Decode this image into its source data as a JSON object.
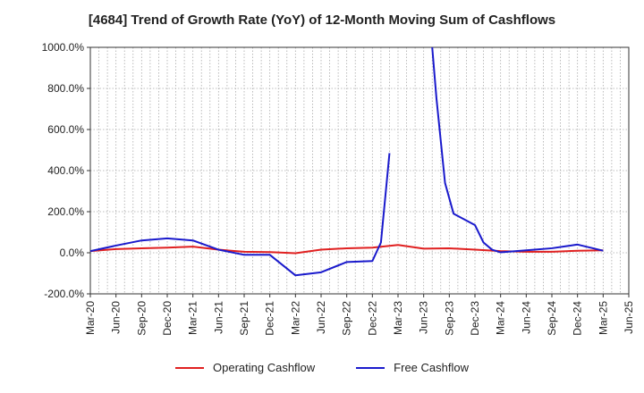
{
  "colors": {
    "operating": "#e02020",
    "free": "#1a1acc",
    "grid": "#aaaaaa",
    "axis": "#333333"
  },
  "chart_data": {
    "type": "line",
    "title": "[4684]  Trend of Growth Rate (YoY) of 12-Month Moving Sum of Cashflows",
    "xlabel": "",
    "ylabel": "",
    "ylim": [
      -200,
      1000
    ],
    "y_ticks": [
      -200,
      0,
      200,
      400,
      600,
      800,
      1000
    ],
    "y_tick_labels": [
      "-200.0%",
      "0.0%",
      "200.0%",
      "400.0%",
      "600.0%",
      "800.0%",
      "1000.0%"
    ],
    "x_tick_labels": [
      "Mar-20",
      "Jun-20",
      "Sep-20",
      "Dec-20",
      "Mar-21",
      "Jun-21",
      "Sep-21",
      "Dec-21",
      "Mar-22",
      "Jun-22",
      "Sep-22",
      "Dec-22",
      "Mar-23",
      "Jun-23",
      "Sep-23",
      "Dec-23",
      "Mar-24",
      "Jun-24",
      "Sep-24",
      "Dec-24",
      "Mar-25",
      "Jun-25"
    ],
    "x_range_months": [
      0,
      63
    ],
    "grid": true,
    "legend_position": "bottom",
    "series": [
      {
        "name": "Operating Cashflow",
        "color_key": "operating",
        "x": [
          0,
          3,
          6,
          9,
          12,
          15,
          18,
          21,
          24,
          27,
          30,
          33,
          36,
          39,
          42,
          45,
          48,
          51,
          54,
          57,
          60
        ],
        "y": [
          8,
          18,
          22,
          25,
          30,
          15,
          5,
          3,
          -2,
          15,
          22,
          25,
          38,
          20,
          22,
          15,
          8,
          5,
          5,
          10,
          12
        ]
      },
      {
        "name": "Free Cashflow",
        "color_key": "free",
        "segments": [
          {
            "x": [
              0,
              3,
              6,
              9,
              12,
              15,
              18,
              21,
              24,
              27,
              30,
              33,
              34,
              35
            ],
            "y": [
              8,
              35,
              60,
              70,
              60,
              15,
              -10,
              -10,
              -110,
              -95,
              -45,
              -40,
              50,
              485
            ]
          },
          {
            "x": [
              40,
              40.5,
              41.5,
              42.5,
              45,
              46,
              47,
              48,
              51,
              54,
              57,
              60
            ],
            "y": [
              1000,
              750,
              340,
              190,
              135,
              50,
              15,
              2,
              12,
              22,
              40,
              10
            ]
          }
        ]
      }
    ]
  }
}
